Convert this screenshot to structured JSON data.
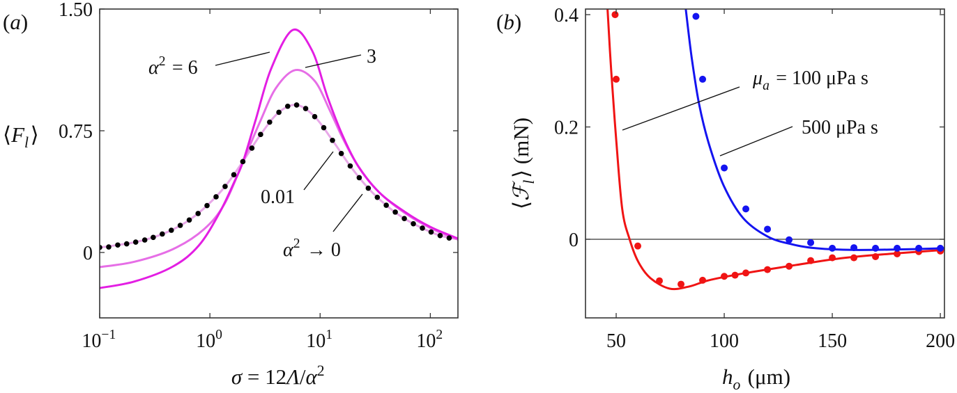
{
  "chart_data": [
    {
      "panel": "(*a*)",
      "type": "line",
      "x_scale": "log",
      "xlabel": "*σ* = 12*Λ*/*α*^{2}",
      "ylabel": "⟨*F*_{*l*}⟩",
      "xlim": [
        0.1,
        178
      ],
      "ylim": [
        -0.403,
        1.5
      ],
      "xticks": [
        {
          "value": 0.1,
          "label": "10^{−1}"
        },
        {
          "value": 1,
          "label": "10^{0}"
        },
        {
          "value": 10,
          "label": "10^{1}"
        },
        {
          "value": 100,
          "label": "10^{2}"
        }
      ],
      "yticks": [
        {
          "value": 1.5,
          "label": "1.50"
        },
        {
          "value": 0.75,
          "label": "0.75"
        },
        {
          "value": 0,
          "label": "0"
        }
      ],
      "grid": false,
      "annotations": [
        "*α*^{2} = 6",
        "3",
        "0.01",
        "*α*^{2} → 0"
      ],
      "series": [
        {
          "name": "α² = 0.01",
          "style": "line",
          "color": "#e8a8e8",
          "log10_sigma": [
            -1.0,
            -0.836,
            -0.673,
            -0.514,
            -0.35,
            -0.187,
            -0.026,
            0.138,
            0.299,
            0.46,
            0.626,
            0.787,
            0.951,
            1.112,
            1.273,
            1.437,
            1.6,
            1.764,
            1.928,
            2.089,
            2.25
          ],
          "values": [
            0.031,
            0.046,
            0.064,
            0.093,
            0.137,
            0.2,
            0.289,
            0.407,
            0.56,
            0.727,
            0.864,
            0.909,
            0.837,
            0.691,
            0.533,
            0.396,
            0.291,
            0.209,
            0.15,
            0.104,
            0.082
          ]
        },
        {
          "name": "α² = 3",
          "style": "line",
          "color": "#e66ee6",
          "log10_sigma": [
            -1.0,
            -0.685,
            -0.334,
            -0.054,
            0.133,
            0.301,
            0.46,
            0.6,
            0.776,
            0.951,
            1.091,
            1.208,
            1.348,
            1.535,
            1.769,
            2.002,
            2.25
          ],
          "values": [
            -0.09,
            -0.057,
            0.021,
            0.143,
            0.3,
            0.56,
            0.814,
            1.014,
            1.124,
            1.057,
            0.871,
            0.7,
            0.529,
            0.371,
            0.243,
            0.15,
            0.079
          ]
        },
        {
          "name": "α² = 6",
          "style": "line",
          "color": "#e31ee3",
          "log10_sigma": [
            -1.0,
            -0.685,
            -0.334,
            -0.1,
            0.086,
            0.227,
            0.301,
            0.414,
            0.554,
            0.752,
            0.928,
            1.068,
            1.208,
            1.348,
            1.535,
            1.769,
            2.002,
            2.25
          ],
          "values": [
            -0.219,
            -0.179,
            -0.086,
            0.043,
            0.243,
            0.443,
            0.56,
            0.814,
            1.129,
            1.371,
            1.243,
            0.957,
            0.714,
            0.529,
            0.371,
            0.25,
            0.157,
            0.086
          ]
        },
        {
          "name": "α² → 0",
          "style": "dots",
          "color": "#000000",
          "log10_sigma": [
            -1.0,
            -0.918,
            -0.836,
            -0.755,
            -0.673,
            -0.591,
            -0.514,
            -0.432,
            -0.35,
            -0.269,
            -0.187,
            -0.107,
            -0.026,
            0.056,
            0.138,
            0.217,
            0.299,
            0.381,
            0.46,
            0.542,
            0.626,
            0.706,
            0.787,
            0.869,
            0.951,
            1.033,
            1.112,
            1.192,
            1.273,
            1.355,
            1.437,
            1.519,
            1.6,
            1.682,
            1.764,
            1.846,
            1.928,
            2.007,
            2.089,
            2.171
          ],
          "values": [
            0.031,
            0.034,
            0.046,
            0.053,
            0.064,
            0.077,
            0.093,
            0.114,
            0.137,
            0.167,
            0.2,
            0.24,
            0.289,
            0.343,
            0.407,
            0.479,
            0.56,
            0.643,
            0.727,
            0.803,
            0.864,
            0.901,
            0.909,
            0.887,
            0.837,
            0.769,
            0.691,
            0.61,
            0.533,
            0.461,
            0.396,
            0.34,
            0.291,
            0.249,
            0.209,
            0.177,
            0.15,
            0.126,
            0.104,
            0.089
          ]
        }
      ]
    },
    {
      "panel": "(*b*)",
      "type": "line",
      "xlabel": "*h*_{*o*} (μm)",
      "ylabel": "⟨*ℱ*_{*l*}⟩ (mN)",
      "xlim": [
        35.8,
        201.9
      ],
      "ylim": [
        -0.14,
        0.41
      ],
      "xticks": [
        {
          "value": 50,
          "label": "50"
        },
        {
          "value": 100,
          "label": "100"
        },
        {
          "value": 150,
          "label": "150"
        },
        {
          "value": 200,
          "label": "200"
        }
      ],
      "yticks": [
        {
          "value": 0.4,
          "label": "0.4"
        },
        {
          "value": 0.2,
          "label": "0.2"
        },
        {
          "value": 0,
          "label": "0"
        }
      ],
      "zero_line": true,
      "grid": false,
      "annotations": [
        "*μ*_{*a*} = 100 μPa s",
        "500 μPa s"
      ],
      "series": [
        {
          "name": "μa = 100 μPa s (theory)",
          "style": "line",
          "color": "#f01414",
          "x": [
            46,
            47.7,
            50,
            52.8,
            56.2,
            60.2,
            65.8,
            74.8,
            83.9,
            92.9,
            108.7,
            131.3,
            153.8,
            176.4,
            201.9
          ],
          "y": [
            0.41,
            0.3,
            0.178,
            0.054,
            0,
            -0.04,
            -0.069,
            -0.088,
            -0.084,
            -0.073,
            -0.061,
            -0.047,
            -0.034,
            -0.026,
            -0.019
          ]
        },
        {
          "name": "μa = 100 μPa s (data)",
          "style": "dots",
          "color": "#f01414",
          "x": [
            49.5,
            50,
            60,
            70,
            80,
            90,
            100,
            105,
            110,
            120,
            130,
            140,
            150,
            160,
            170,
            180,
            190,
            200
          ],
          "y": [
            0.4,
            0.285,
            -0.012,
            -0.074,
            -0.08,
            -0.073,
            -0.066,
            -0.064,
            -0.06,
            -0.054,
            -0.048,
            -0.038,
            -0.033,
            -0.033,
            -0.031,
            -0.026,
            -0.022,
            -0.021
          ]
        },
        {
          "name": "500 μPa s (theory)",
          "style": "line",
          "color": "#1414f0",
          "x": [
            82.2,
            85,
            88.4,
            92.9,
            99.7,
            108.7,
            120,
            131.3,
            142.6,
            159.5,
            182.1,
            201.9
          ],
          "y": [
            0.41,
            0.322,
            0.24,
            0.17,
            0.096,
            0.038,
            0.005,
            -0.009,
            -0.016,
            -0.019,
            -0.018,
            -0.016
          ]
        },
        {
          "name": "500 μPa s (data)",
          "style": "dots",
          "color": "#1414f0",
          "x": [
            86.9,
            90,
            100,
            110,
            120,
            130,
            140,
            150,
            160,
            170,
            180,
            190,
            200
          ],
          "y": [
            0.397,
            0.285,
            0.127,
            0.054,
            0.018,
            -0.001,
            -0.006,
            -0.016,
            -0.015,
            -0.016,
            -0.016,
            -0.016,
            -0.016
          ]
        }
      ]
    }
  ]
}
